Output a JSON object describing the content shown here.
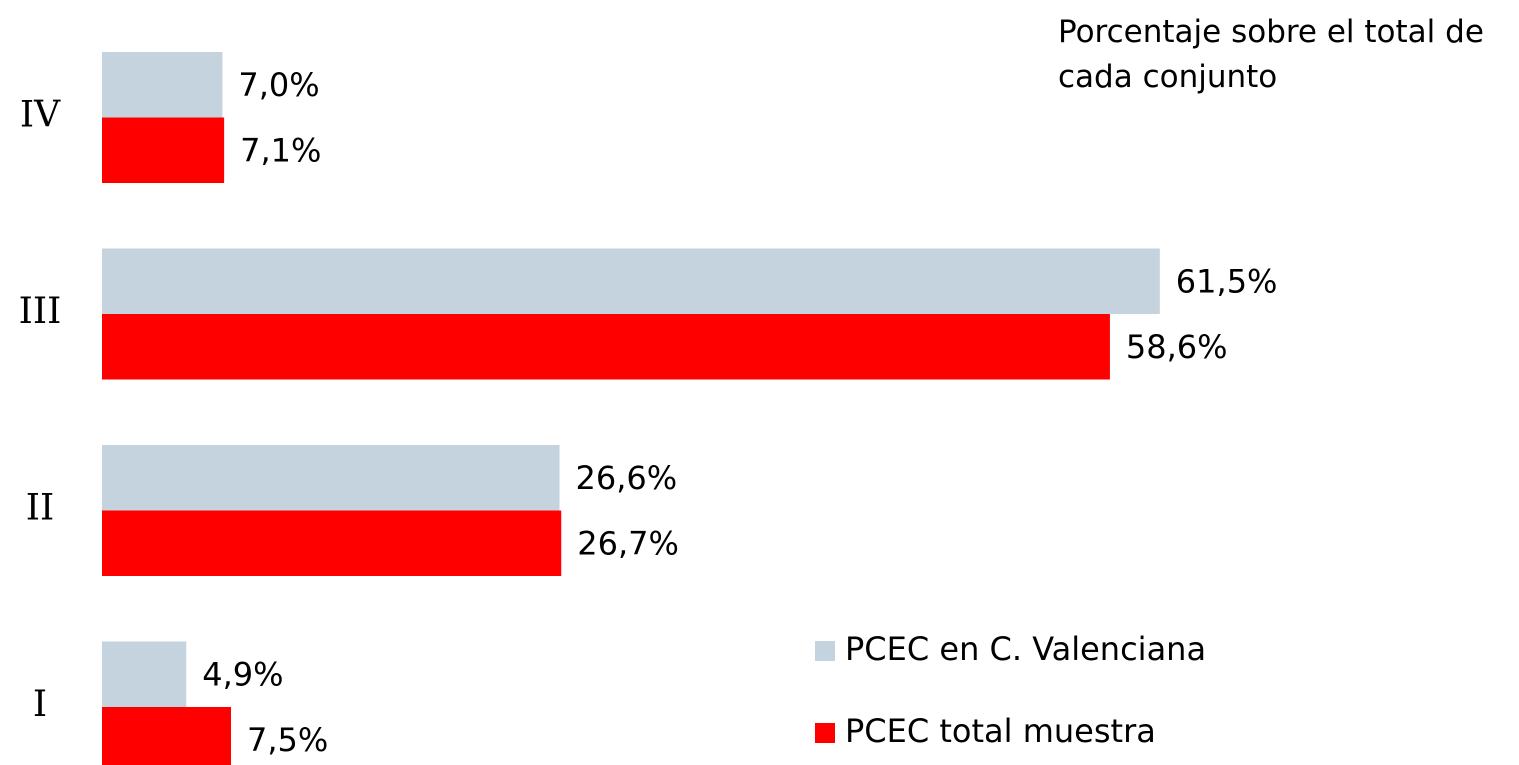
{
  "chart_data": {
    "type": "bar",
    "orientation": "horizontal",
    "annotation": "Porcentaje sobre el total de cada conjunto",
    "categories": [
      "I",
      "II",
      "III",
      "IV"
    ],
    "xlim": [
      0,
      80
    ],
    "series": [
      {
        "name": "PCEC en C. Valenciana",
        "color": "#c5d3de",
        "values": [
          4.9,
          26.6,
          61.5,
          7.0
        ],
        "value_labels": [
          "4,9%",
          "26,6%",
          "61,5%",
          "7,0%"
        ]
      },
      {
        "name": "PCEC total muestra",
        "color": "#ff0000",
        "values": [
          7.5,
          26.7,
          58.6,
          7.1
        ],
        "value_labels": [
          "7,5%",
          "26,7%",
          "58,6%",
          "7,1%"
        ]
      }
    ]
  }
}
